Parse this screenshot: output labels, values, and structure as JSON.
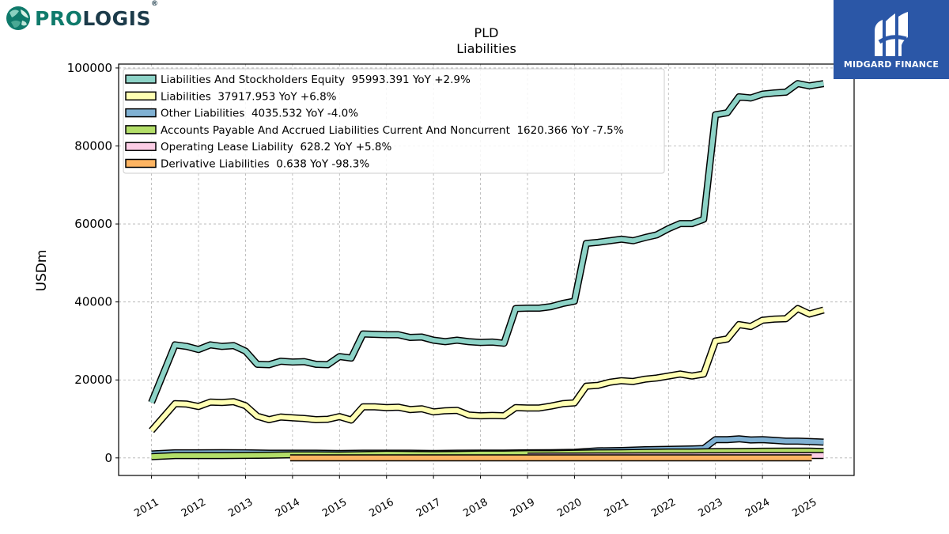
{
  "brand_left": {
    "pro": "PRO",
    "logis": "LOGIS",
    "reg": "®"
  },
  "brand_right": {
    "name": "MIDGARD FINANCE"
  },
  "chart_data": {
    "type": "line",
    "title": "PLD",
    "subtitle": "Liabilities",
    "ylabel": "USDm",
    "xlabel": "",
    "ylim": [
      -4500,
      101000
    ],
    "xlim": [
      2010.3,
      2025.95
    ],
    "y_ticks": [
      0,
      20000,
      40000,
      60000,
      80000,
      100000
    ],
    "x_ticks": [
      "2011",
      "2012",
      "2013",
      "2014",
      "2015",
      "2016",
      "2017",
      "2018",
      "2019",
      "2020",
      "2021",
      "2022",
      "2023",
      "2024",
      "2025"
    ],
    "grid": true,
    "legend_position": "top-left",
    "series": [
      {
        "name": "Liabilities And Stockholders Equity",
        "legend": "Liabilities And Stockholders Equity  95993.391 YoY +2.9%",
        "color": "#8dd3c7",
        "x": [
          2011.0,
          2011.5,
          2011.75,
          2012.0,
          2012.25,
          2012.5,
          2012.75,
          2013.0,
          2013.25,
          2013.5,
          2013.75,
          2014.0,
          2014.25,
          2014.5,
          2014.75,
          2015.0,
          2015.25,
          2015.5,
          2015.75,
          2016.0,
          2016.25,
          2016.5,
          2016.75,
          2017.0,
          2017.25,
          2017.5,
          2017.75,
          2018.0,
          2018.25,
          2018.5,
          2018.75,
          2019.0,
          2019.25,
          2019.5,
          2019.75,
          2020.0,
          2020.25,
          2020.5,
          2020.75,
          2021.0,
          2021.25,
          2021.5,
          2021.75,
          2022.0,
          2022.25,
          2022.5,
          2022.75,
          2023.0,
          2023.25,
          2023.5,
          2023.75,
          2024.0,
          2024.25,
          2024.5,
          2024.75,
          2025.0,
          2025.3
        ],
        "y": [
          14200,
          29000,
          28600,
          27800,
          29000,
          28600,
          28800,
          27400,
          24000,
          23900,
          24800,
          24600,
          24700,
          24000,
          23900,
          26000,
          25600,
          31800,
          31700,
          31600,
          31600,
          30900,
          31000,
          30200,
          29800,
          30200,
          29800,
          29600,
          29700,
          29400,
          38300,
          38400,
          38400,
          38800,
          39600,
          40200,
          55000,
          55300,
          55700,
          56100,
          55700,
          56500,
          57200,
          58800,
          60100,
          60100,
          61200,
          88000,
          88500,
          92600,
          92300,
          93300,
          93600,
          93800,
          96000,
          95400,
          95993
        ]
      },
      {
        "name": "Liabilities",
        "legend": "Liabilities  37917.953 YoY +6.8%",
        "color": "#ffffb3",
        "x": [
          2011.0,
          2011.5,
          2011.75,
          2012.0,
          2012.25,
          2012.5,
          2012.75,
          2013.0,
          2013.25,
          2013.5,
          2013.75,
          2014.0,
          2014.25,
          2014.5,
          2014.75,
          2015.0,
          2015.25,
          2015.5,
          2015.75,
          2016.0,
          2016.25,
          2016.5,
          2016.75,
          2017.0,
          2017.25,
          2017.5,
          2017.75,
          2018.0,
          2018.25,
          2018.5,
          2018.75,
          2019.0,
          2019.25,
          2019.5,
          2019.75,
          2020.0,
          2020.25,
          2020.5,
          2020.75,
          2021.0,
          2021.25,
          2021.5,
          2021.75,
          2022.0,
          2022.25,
          2022.5,
          2022.75,
          2023.0,
          2023.25,
          2023.5,
          2023.75,
          2024.0,
          2024.25,
          2024.5,
          2024.75,
          2025.0,
          2025.3
        ],
        "y": [
          7000,
          13900,
          13800,
          13200,
          14300,
          14200,
          14400,
          13400,
          10700,
          9800,
          10500,
          10300,
          10100,
          9800,
          9900,
          10600,
          9700,
          13100,
          13100,
          12900,
          13000,
          12400,
          12600,
          11800,
          12100,
          12200,
          11000,
          10800,
          10900,
          10800,
          12900,
          12800,
          12800,
          13300,
          13900,
          14100,
          18400,
          18600,
          19400,
          19800,
          19600,
          20200,
          20500,
          21000,
          21500,
          21000,
          21500,
          30000,
          30500,
          34200,
          33700,
          35300,
          35600,
          35700,
          38300,
          36900,
          37918
        ]
      },
      {
        "name": "Other Liabilities",
        "legend": "Other Liabilities  4035.532 YoY -4.0%",
        "color": "#80b1d3",
        "x": [
          2011.0,
          2011.5,
          2012.0,
          2012.5,
          2013.0,
          2013.5,
          2014.0,
          2014.5,
          2015.0,
          2015.5,
          2016.0,
          2016.5,
          2017.0,
          2017.5,
          2018.0,
          2018.5,
          2019.0,
          2019.5,
          2020.0,
          2020.5,
          2021.0,
          2021.5,
          2022.0,
          2022.5,
          2022.75,
          2023.0,
          2023.25,
          2023.5,
          2023.75,
          2024.0,
          2024.25,
          2024.5,
          2024.75,
          2025.0,
          2025.3
        ],
        "y": [
          1000,
          1300,
          1300,
          1350,
          1300,
          1200,
          1200,
          1200,
          1150,
          1200,
          1200,
          1200,
          1150,
          1200,
          1250,
          1250,
          1300,
          1350,
          1450,
          1800,
          1900,
          2100,
          2200,
          2300,
          2400,
          4700,
          4700,
          4900,
          4600,
          4700,
          4500,
          4300,
          4300,
          4200,
          4036
        ]
      },
      {
        "name": "Accounts Payable And Accrued Liabilities Current And Noncurrent",
        "legend": "Accounts Payable And Accrued Liabilities Current And Noncurrent  1620.366 YoY -7.5%",
        "color": "#b3de69",
        "x": [
          2011.0,
          2011.5,
          2012.0,
          2012.5,
          2013.0,
          2013.5,
          2014.0,
          2014.5,
          2015.0,
          2015.5,
          2016.0,
          2016.5,
          2017.0,
          2017.5,
          2018.0,
          2018.5,
          2019.0,
          2019.5,
          2020.0,
          2020.5,
          2021.0,
          2021.5,
          2022.0,
          2022.5,
          2023.0,
          2023.5,
          2024.0,
          2024.5,
          2025.0,
          2025.3
        ],
        "y": [
          300,
          600,
          600,
          600,
          650,
          700,
          800,
          800,
          750,
          850,
          950,
          900,
          850,
          900,
          1000,
          1000,
          1100,
          1100,
          1200,
          1300,
          1350,
          1450,
          1500,
          1500,
          1600,
          1650,
          1700,
          1750,
          1750,
          1620
        ]
      },
      {
        "name": "Operating Lease Liability",
        "legend": "Operating Lease Liability  628.2 YoY +5.8%",
        "color": "#fccde5",
        "x": [
          2019.0,
          2019.5,
          2020.0,
          2020.5,
          2021.0,
          2021.5,
          2022.0,
          2022.5,
          2023.0,
          2023.5,
          2024.0,
          2024.5,
          2025.0,
          2025.3
        ],
        "y": [
          460,
          470,
          480,
          490,
          500,
          510,
          520,
          540,
          560,
          580,
          590,
          600,
          610,
          628
        ]
      },
      {
        "name": "Derivative Liabilities",
        "legend": "Derivative Liabilities  0.638 YoY -98.3%",
        "color": "#fdb462",
        "x": [
          2013.95,
          2014.5,
          2015.0,
          2016.0,
          2017.0,
          2018.0,
          2019.0,
          2020.0,
          2021.0,
          2022.0,
          2023.0,
          2024.0,
          2025.05
        ],
        "y": [
          0,
          0,
          0,
          0,
          0,
          0,
          0,
          0,
          0,
          0,
          0,
          0,
          1
        ]
      }
    ]
  }
}
